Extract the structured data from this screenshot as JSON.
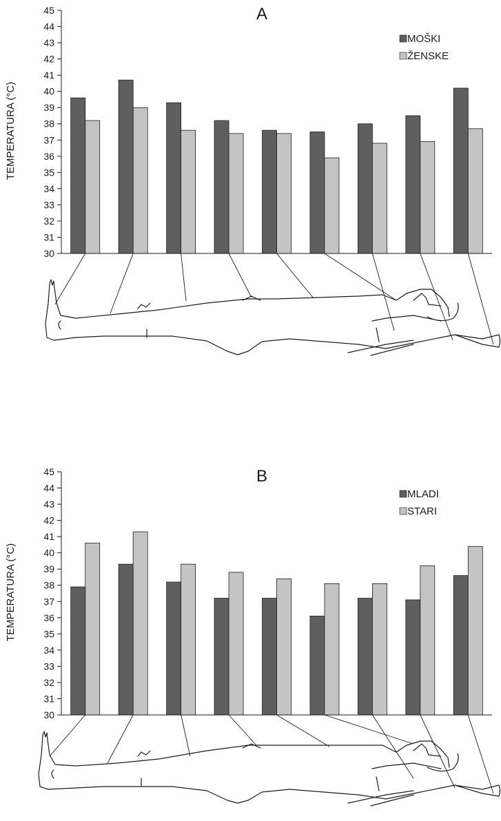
{
  "colors": {
    "series_dark": "#5f5f5f",
    "series_light": "#c4c4c4",
    "stroke": "#1a1a1a"
  },
  "chart_data": [
    {
      "type": "bar",
      "title": "A",
      "ylabel": "TEMPERATURA (°C)",
      "xlabel": "",
      "ylim": [
        30,
        45
      ],
      "yticks": [
        30,
        31,
        32,
        33,
        34,
        35,
        36,
        37,
        38,
        39,
        40,
        41,
        42,
        43,
        44,
        45
      ],
      "legend_position": "top-right",
      "categories": [
        "",
        "",
        "",
        "",
        "",
        "",
        "",
        "",
        ""
      ],
      "series": [
        {
          "name": "MOŠKI",
          "color": "#5f5f5f",
          "values": [
            39.6,
            40.7,
            39.3,
            38.2,
            37.6,
            37.5,
            38.0,
            38.5,
            40.2
          ]
        },
        {
          "name": "ŽENSKE",
          "color": "#c4c4c4",
          "values": [
            38.2,
            39.0,
            37.6,
            37.4,
            37.4,
            35.9,
            36.8,
            36.9,
            37.7
          ]
        }
      ]
    },
    {
      "type": "bar",
      "title": "B",
      "ylabel": "TEMPERATURA (°C)",
      "xlabel": "",
      "ylim": [
        30,
        45
      ],
      "yticks": [
        30,
        31,
        32,
        33,
        34,
        35,
        36,
        37,
        38,
        39,
        40,
        41,
        42,
        43,
        44,
        45
      ],
      "legend_position": "top-right",
      "categories": [
        "",
        "",
        "",
        "",
        "",
        "",
        "",
        "",
        ""
      ],
      "series": [
        {
          "name": "MLADI",
          "color": "#5f5f5f",
          "values": [
            37.9,
            39.3,
            38.2,
            37.2,
            37.2,
            36.1,
            37.2,
            37.1,
            38.6
          ]
        },
        {
          "name": "STARI",
          "color": "#c4c4c4",
          "values": [
            40.6,
            41.3,
            39.3,
            38.8,
            38.4,
            38.1,
            38.1,
            39.2,
            40.4
          ]
        }
      ]
    }
  ]
}
